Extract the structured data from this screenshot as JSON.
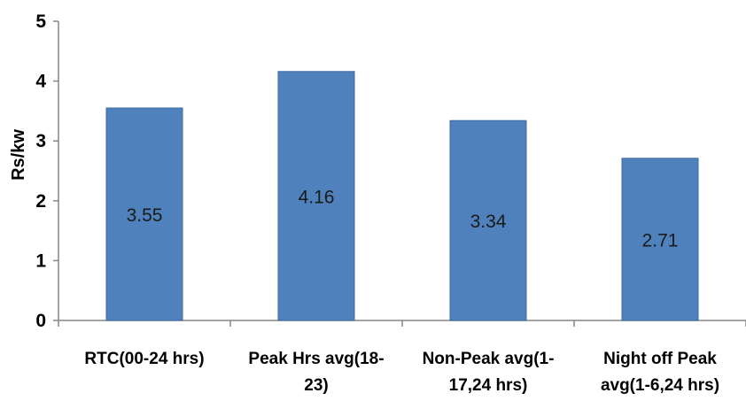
{
  "chart_data": {
    "type": "bar",
    "title": "",
    "xlabel": "",
    "ylabel": "Rs/kw",
    "ylim": [
      0,
      5
    ],
    "yticks": [
      0,
      1,
      2,
      3,
      4,
      5
    ],
    "grid": false,
    "legend": "none",
    "categories": [
      [
        "RTC(00-24 hrs)"
      ],
      [
        "Peak Hrs avg(18-",
        "23)"
      ],
      [
        "Non-Peak avg(1-",
        "17,24 hrs)"
      ],
      [
        "Night off Peak",
        "avg(1-6,24 hrs)"
      ]
    ],
    "values": [
      3.55,
      4.16,
      3.34,
      2.71
    ],
    "data_labels": [
      "3.55",
      "4.16",
      "3.34",
      "2.71"
    ],
    "bar_color": "#4f81bd",
    "bar_edge_color": "#3a6aa0"
  }
}
